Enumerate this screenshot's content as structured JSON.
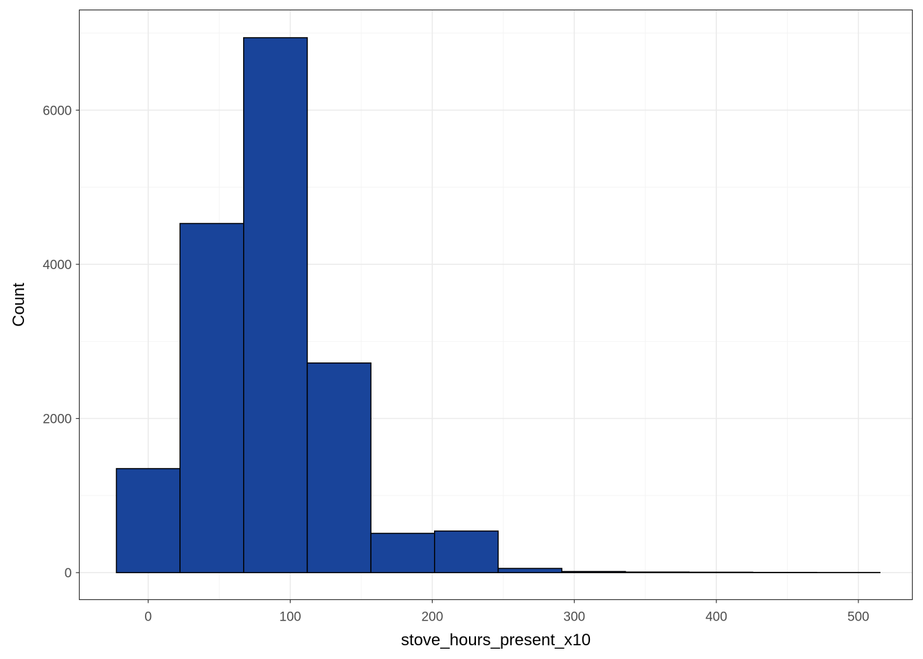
{
  "chart_data": {
    "type": "bar",
    "subtype": "histogram",
    "xlabel": "stove_hours_present_x10",
    "ylabel": "Count",
    "xlim": [
      -48.5,
      538
    ],
    "ylim": [
      -350,
      7300
    ],
    "x_ticks": [
      0,
      100,
      200,
      300,
      400,
      500
    ],
    "y_ticks": [
      0,
      2000,
      4000,
      6000
    ],
    "x_tick_labels": [
      "0",
      "100",
      "200",
      "300",
      "400",
      "500"
    ],
    "y_tick_labels": [
      "0",
      "2000",
      "4000",
      "6000"
    ],
    "grid": true,
    "legend": "none",
    "bins": [
      {
        "x0": -22.4,
        "x1": 22.4,
        "count": 1350
      },
      {
        "x0": 22.4,
        "x1": 67.2,
        "count": 4530
      },
      {
        "x0": 67.2,
        "x1": 112.0,
        "count": 6940
      },
      {
        "x0": 112.0,
        "x1": 156.8,
        "count": 2720
      },
      {
        "x0": 156.8,
        "x1": 201.6,
        "count": 510
      },
      {
        "x0": 201.6,
        "x1": 246.4,
        "count": 540
      },
      {
        "x0": 246.4,
        "x1": 291.2,
        "count": 55
      },
      {
        "x0": 291.2,
        "x1": 336.0,
        "count": 15
      },
      {
        "x0": 336.0,
        "x1": 380.8,
        "count": 8
      },
      {
        "x0": 380.8,
        "x1": 425.6,
        "count": 6
      },
      {
        "x0": 425.6,
        "x1": 470.4,
        "count": 3
      },
      {
        "x0": 470.4,
        "x1": 515.2,
        "count": 2
      }
    ]
  },
  "colors": {
    "bar_fill": "#19449a",
    "bar_stroke": "#000000",
    "grid_major": "#ebebeb",
    "grid_minor": "#f4f4f4",
    "panel_border": "#333333",
    "tick_text": "#4d4d4d"
  }
}
